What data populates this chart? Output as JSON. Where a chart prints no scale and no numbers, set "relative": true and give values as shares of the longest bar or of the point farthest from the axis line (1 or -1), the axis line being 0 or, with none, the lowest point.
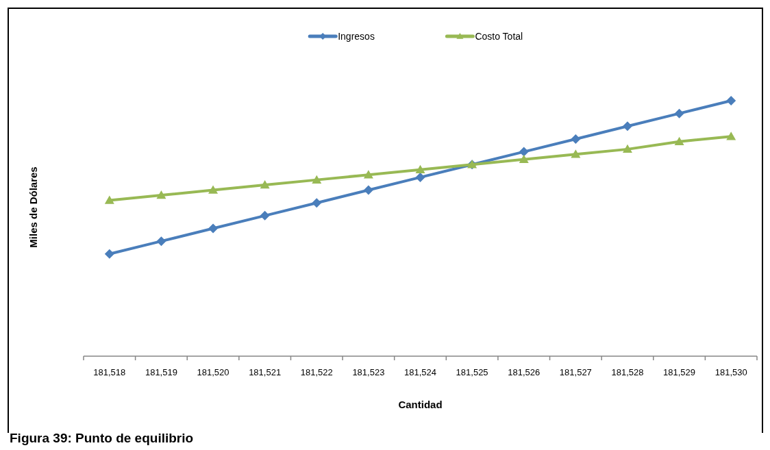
{
  "chart_data": {
    "type": "line",
    "relative": true,
    "categories": [
      "181,518",
      "181,519",
      "181,520",
      "181,521",
      "181,522",
      "181,523",
      "181,524",
      "181,525",
      "181,526",
      "181,527",
      "181,528",
      "181,529",
      "181,530"
    ],
    "series": [
      {
        "name": "Ingresos",
        "color": "#4a7ebb",
        "marker": "diamond",
        "values": [
          0.4,
          0.45,
          0.5,
          0.55,
          0.6,
          0.65,
          0.7,
          0.75,
          0.8,
          0.85,
          0.9,
          0.95,
          1
        ]
      },
      {
        "name": "Costo Total",
        "color": "#98b954",
        "marker": "triangle",
        "values": [
          0.61,
          0.63,
          0.65,
          0.67,
          0.69,
          0.71,
          0.73,
          0.75,
          0.77,
          0.79,
          0.81,
          0.84,
          0.86
        ]
      }
    ],
    "xlabel": "Cantidad",
    "ylabel": "Miles de Dólares",
    "legend": "top",
    "annotations": [
      "Figura 39: Punto de equilibrio"
    ]
  }
}
